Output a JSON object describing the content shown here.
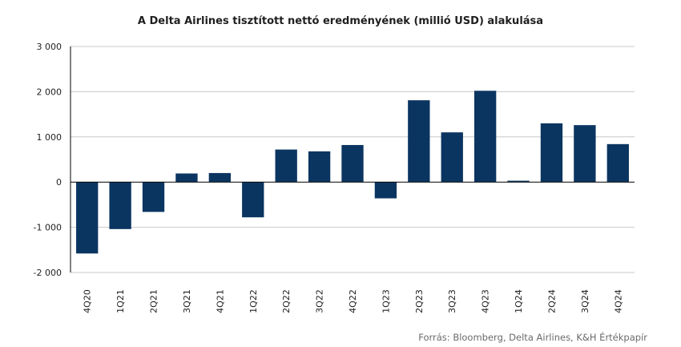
{
  "chart_data": {
    "type": "bar",
    "title": "A Delta Airlines tisztított nettó eredményének  (millió USD) alakulása",
    "source": "Forrás: Bloomberg,  Delta Airlines, K&H Értékpapír",
    "categories": [
      "4Q20",
      "1Q21",
      "2Q21",
      "3Q21",
      "4Q21",
      "1Q22",
      "2Q22",
      "3Q22",
      "4Q22",
      "1Q23",
      "2Q23",
      "3Q23",
      "4Q23",
      "1Q24",
      "2Q24",
      "3Q24",
      "4Q24"
    ],
    "values": [
      -1580,
      -1040,
      -660,
      190,
      200,
      -780,
      720,
      680,
      820,
      -360,
      1810,
      1100,
      2020,
      30,
      1300,
      1260,
      840
    ],
    "ylim": [
      -2000,
      3000
    ],
    "yticks": [
      3000,
      2000,
      1000,
      0,
      -1000,
      -2000
    ],
    "ytick_labels": [
      "3 000",
      "2 000",
      "1 000",
      "0",
      "-1 000",
      "-2 000"
    ],
    "xlabel": "",
    "ylabel": "",
    "grid": true,
    "bar_color": "#0b3561",
    "grid_color": "#c8c8c8"
  }
}
